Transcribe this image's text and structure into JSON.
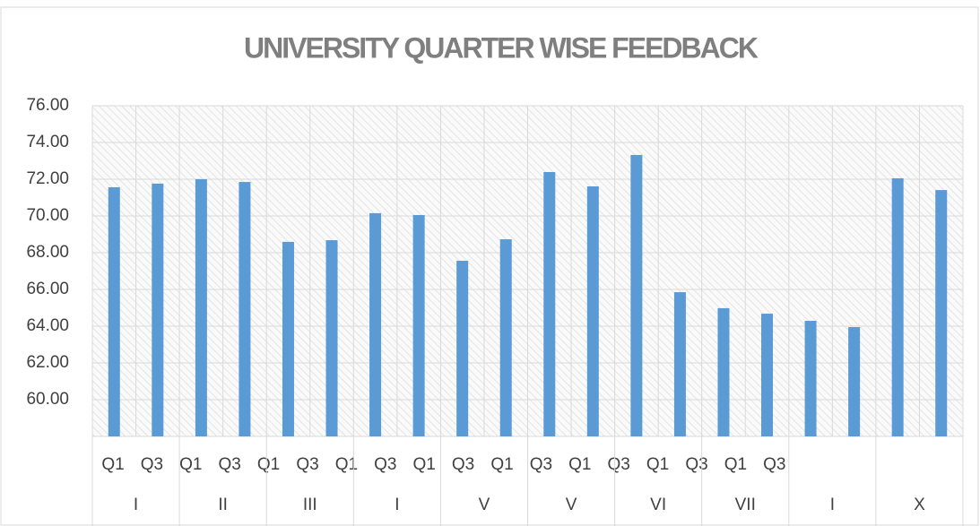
{
  "chart_data": {
    "type": "bar",
    "title": "UNIVERSITY QUARTER WISE FEEDBACK",
    "categories": [
      "Q1",
      "Q3",
      "Q1",
      "Q3",
      "Q1",
      "Q3",
      "Q1",
      "Q3",
      "Q1",
      "Q3",
      "Q1",
      "Q3",
      "Q1",
      "Q3",
      "Q1",
      "Q3",
      "Q1",
      "Q3",
      null,
      null
    ],
    "groups": [
      "I",
      "II",
      "III",
      "I",
      "V",
      "V",
      "VI",
      "VII",
      "I",
      "X"
    ],
    "values": [
      71.56,
      71.76,
      72.0,
      71.85,
      68.59,
      68.68,
      70.15,
      70.05,
      67.56,
      68.73,
      72.39,
      71.61,
      73.32,
      65.85,
      64.98,
      64.68,
      64.29,
      63.95,
      72.05,
      71.41
    ],
    "color": "#5b9bd5",
    "ylim": [
      58,
      76
    ],
    "yticks": [
      {
        "value": 60,
        "label": "60.00"
      },
      {
        "value": 62,
        "label": "62.00"
      },
      {
        "value": 64,
        "label": "64.00"
      },
      {
        "value": 66,
        "label": "66.00"
      },
      {
        "value": 68,
        "label": "68.00"
      },
      {
        "value": 70,
        "label": "70.00"
      },
      {
        "value": 72,
        "label": "72.00"
      },
      {
        "value": 74,
        "label": "74.00"
      },
      {
        "value": 76,
        "label": "76.00"
      }
    ],
    "grid": true
  }
}
